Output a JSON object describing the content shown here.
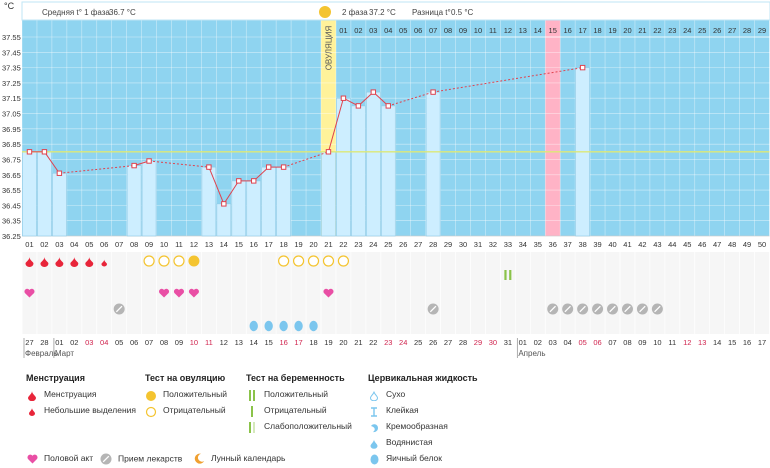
{
  "header": {
    "unit": "°C",
    "phase1_label": "Средняя t° 1 фаза",
    "phase1_value": "36.7 °C",
    "phase2_label": "2 фаза",
    "phase2_value": "37.2 °C",
    "diff_label": "Разница t°",
    "diff_value": "0.5 °C"
  },
  "ovulation_label": "ОВУЛЯЦИЯ",
  "colors": {
    "grid_bg": "#8fd4f0",
    "bar_fill": "#cdeeff",
    "bar_stroke": "#8ecae6",
    "ovulation": "#fff29a",
    "highlight_day": "#ffb3c6",
    "line": "#e0424e",
    "coverline": "#dde877",
    "menses": "#e8253a",
    "heart": "#e94fa5",
    "ovu_test": "#f4c430",
    "preg_test": "#8bc34a",
    "pill": "#b5b5b5",
    "cervical": "#7bc6ee"
  },
  "chart_data": {
    "type": "line",
    "ylim": [
      36.25,
      37.55
    ],
    "yticks": [
      "37.55",
      "37.45",
      "37.35",
      "37.25",
      "37.15",
      "37.05",
      "36.95",
      "36.85",
      "36.75",
      "36.65",
      "36.55",
      "36.45",
      "36.35",
      "36.25"
    ],
    "coverline": 36.8,
    "cycle_days": [
      "01",
      "02",
      "03",
      "04",
      "05",
      "06",
      "07",
      "08",
      "09",
      "10",
      "11",
      "12",
      "13",
      "14",
      "15",
      "16",
      "17",
      "18",
      "19",
      "20",
      "21",
      "22",
      "23",
      "24",
      "25",
      "26",
      "27",
      "28",
      "29",
      "30",
      "31",
      "32",
      "33",
      "34",
      "35",
      "36",
      "37",
      "38",
      "39",
      "40",
      "41",
      "42",
      "43",
      "44",
      "45",
      "46",
      "47",
      "48",
      "49",
      "50"
    ],
    "phase2_days": [
      "01",
      "02",
      "03",
      "04",
      "05",
      "06",
      "07",
      "08",
      "09",
      "10",
      "11",
      "12",
      "13",
      "14",
      "15",
      "16",
      "17",
      "18",
      "19",
      "20",
      "21",
      "22",
      "23",
      "24",
      "25",
      "26",
      "27",
      "28",
      "29"
    ],
    "ovulation_day": 21,
    "highlight_day": 36,
    "series": [
      {
        "points": [
          [
            1,
            36.8
          ],
          [
            2,
            36.8
          ],
          [
            3,
            36.66
          ],
          [
            8,
            36.71
          ],
          [
            9,
            36.74
          ],
          [
            13,
            36.7
          ],
          [
            14,
            36.46
          ],
          [
            15,
            36.61
          ],
          [
            16,
            36.61
          ],
          [
            17,
            36.7
          ],
          [
            18,
            36.7
          ],
          [
            21,
            36.8
          ],
          [
            22,
            37.15
          ],
          [
            23,
            37.1
          ],
          [
            24,
            37.19
          ],
          [
            25,
            37.1
          ],
          [
            28,
            37.19
          ],
          [
            38,
            37.35
          ]
        ]
      }
    ],
    "dashed_gaps": true
  },
  "calendar": {
    "dates": [
      "27",
      "28",
      "01",
      "02",
      "03",
      "04",
      "05",
      "06",
      "07",
      "08",
      "09",
      "10",
      "11",
      "12",
      "13",
      "14",
      "15",
      "16",
      "17",
      "18",
      "19",
      "20",
      "21",
      "22",
      "23",
      "24",
      "25",
      "26",
      "27",
      "28",
      "29",
      "30",
      "31",
      "01",
      "02",
      "03",
      "04",
      "05",
      "06",
      "07",
      "08",
      "09",
      "10",
      "11",
      "12",
      "13",
      "14",
      "15",
      "16",
      "17"
    ],
    "red_dates": [
      5,
      6,
      12,
      13,
      18,
      19,
      25,
      26,
      31,
      32,
      38,
      39,
      45,
      46
    ],
    "month_labels": [
      {
        "col": 1,
        "text": "Февраль"
      },
      {
        "col": 3,
        "text": "Март"
      },
      {
        "col": 34,
        "text": "Апрель"
      }
    ]
  },
  "markers": {
    "menses": [
      1,
      2,
      3,
      4,
      5
    ],
    "spotting": [
      6
    ],
    "ovu_negative": [
      9,
      10,
      11,
      18,
      19,
      20,
      21,
      22
    ],
    "ovu_positive": [
      12
    ],
    "preg_positive": [
      33
    ],
    "hearts": [
      1,
      10,
      11,
      12,
      21
    ],
    "pills": [
      7,
      28,
      36,
      37,
      38,
      39,
      40,
      41,
      42,
      43
    ],
    "egg_white": [
      16,
      17,
      18,
      19,
      20
    ]
  },
  "legend": {
    "menstruation": {
      "title": "Менструация",
      "items": [
        "Менструация",
        "Небольшие выделения"
      ]
    },
    "ovulation_test": {
      "title": "Тест на овуляцию",
      "items": [
        "Положительный",
        "Отрицательный"
      ]
    },
    "pregnancy_test": {
      "title": "Тест на беременность",
      "items": [
        "Положительный",
        "Отрицательный",
        "Слабоположительный"
      ]
    },
    "cervical": {
      "title": "Цервикальная жидкость",
      "items": [
        "Сухо",
        "Клейкая",
        "Кремообразная",
        "Водянистая",
        "Яичный белок"
      ]
    },
    "bottom": [
      "Половой акт",
      "Прием лекарств",
      "Лунный календарь"
    ]
  }
}
